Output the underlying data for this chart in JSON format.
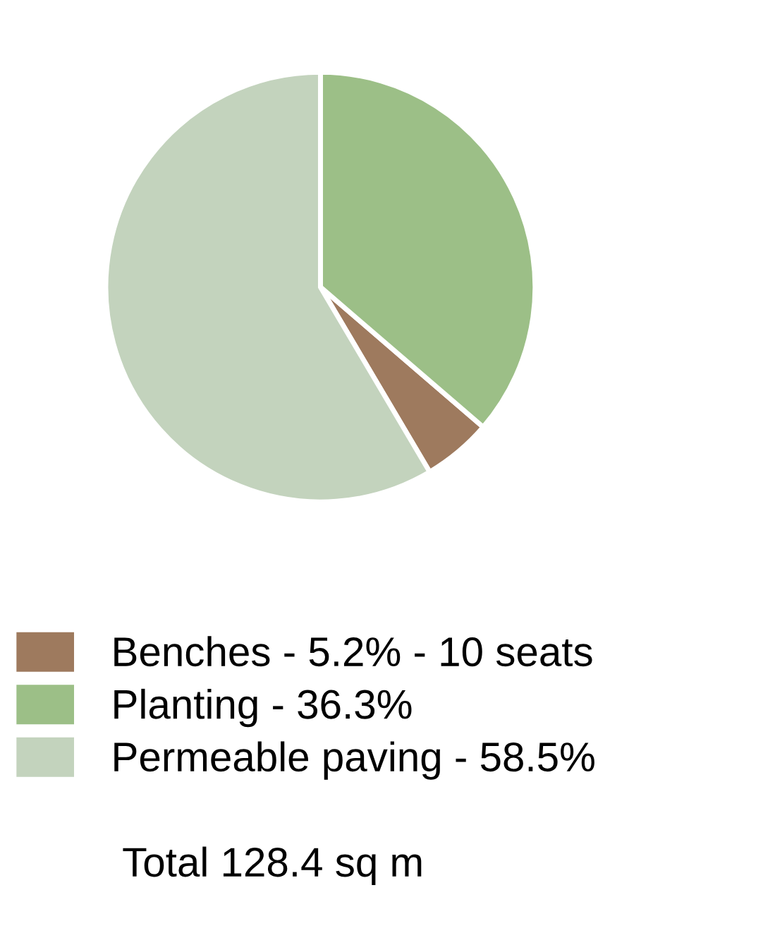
{
  "chart_data": {
    "type": "pie",
    "categories": [
      "Benches - 5.2% - 10 seats",
      "Planting - 36.3%",
      "Permeable paving - 58.5%"
    ],
    "values": [
      5.2,
      36.3,
      58.5
    ],
    "colors": [
      "#9e7a5e",
      "#9cbf87",
      "#c3d3bd"
    ],
    "legend": "bottom",
    "annotations": [
      "Total 128.4 sq m"
    ]
  }
}
